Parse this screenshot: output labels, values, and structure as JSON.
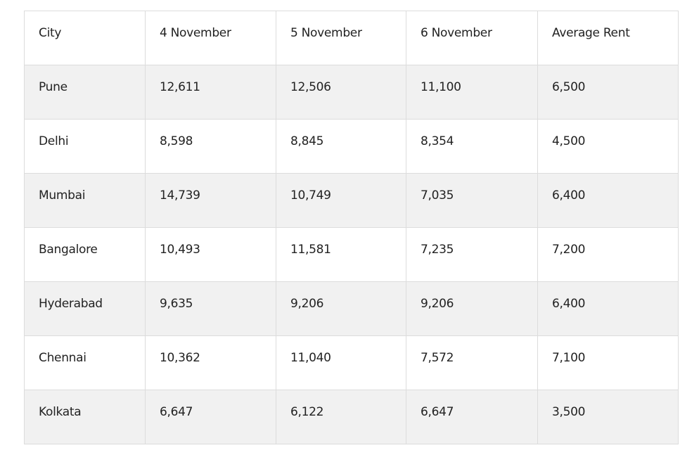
{
  "table": {
    "headers": [
      "City",
      "4 November",
      "5 November",
      "6 November",
      "Average Rent"
    ],
    "rows": [
      [
        "Pune",
        "12,611",
        "12,506",
        "11,100",
        "6,500"
      ],
      [
        "Delhi",
        "8,598",
        "8,845",
        "8,354",
        "4,500"
      ],
      [
        "Mumbai",
        "14,739",
        "10,749",
        "7,035",
        "6,400"
      ],
      [
        "Bangalore",
        "10,493",
        "11,581",
        "7,235",
        "7,200"
      ],
      [
        "Hyderabad",
        "9,635",
        "9,206",
        "9,206",
        "6,400"
      ],
      [
        "Chennai",
        "10,362",
        "11,040",
        "7,572",
        "7,100"
      ],
      [
        "Kolkata",
        "6,647",
        "6,122",
        "6,647",
        "3,500"
      ]
    ]
  },
  "colors": {
    "stripe": "#f1f1f1",
    "border": "#dcdcdc",
    "text": "#222222"
  }
}
